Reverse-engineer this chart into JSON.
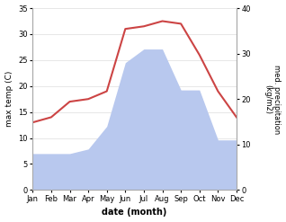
{
  "months": [
    "Jan",
    "Feb",
    "Mar",
    "Apr",
    "May",
    "Jun",
    "Jul",
    "Aug",
    "Sep",
    "Oct",
    "Nov",
    "Dec"
  ],
  "temperature": [
    13,
    14,
    17,
    17.5,
    19,
    31,
    31.5,
    32.5,
    32,
    26,
    19,
    14
  ],
  "precipitation": [
    8,
    8,
    8,
    9,
    14,
    28,
    31,
    31,
    22,
    22,
    11,
    11
  ],
  "temp_color": "#cc4444",
  "precip_color": "#b8c8ee",
  "ylim_temp": [
    0,
    35
  ],
  "ylim_precip": [
    0,
    40
  ],
  "ylabel_left": "max temp (C)",
  "ylabel_right": "med. precipitation\n(kg/m2)",
  "xlabel": "date (month)",
  "bg_color": "#ffffff",
  "temp_yticks": [
    0,
    5,
    10,
    15,
    20,
    25,
    30,
    35
  ],
  "precip_yticks": [
    0,
    10,
    20,
    30,
    40
  ]
}
